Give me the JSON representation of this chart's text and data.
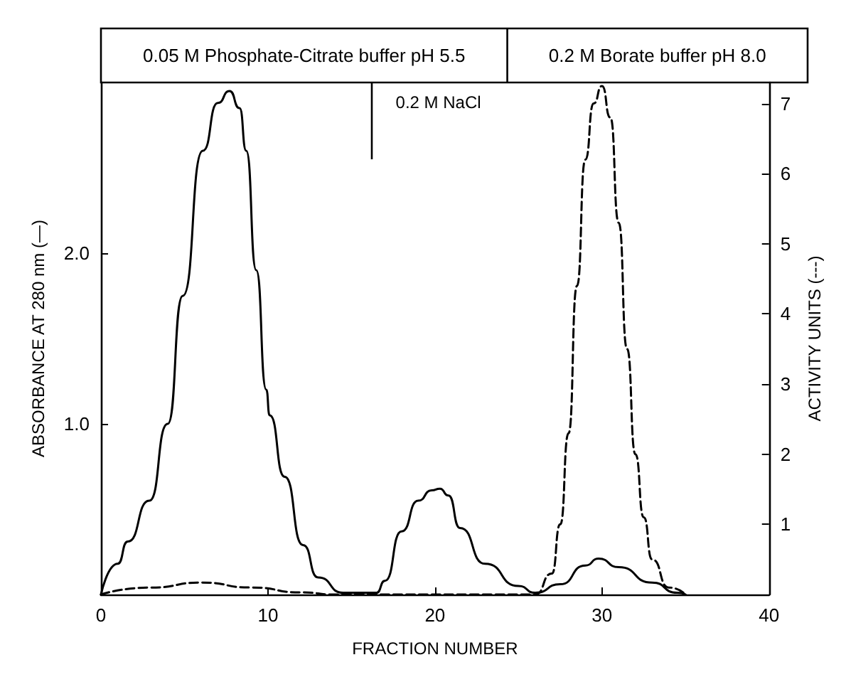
{
  "chart_data": {
    "type": "line",
    "xlabel": "FRACTION NUMBER",
    "ylabel": "ABSORBANCE AT 280 nm (—)",
    "y2label": "ACTIVITY UNITS (---)",
    "xlim": [
      0,
      40
    ],
    "xticks": [
      0,
      10,
      20,
      30,
      40
    ],
    "ylim": [
      0,
      3.0
    ],
    "yticks": [
      {
        "value": 1,
        "label": "1.0"
      },
      {
        "value": 2,
        "label": "2.0"
      }
    ],
    "y2lim": [
      0,
      7.3
    ],
    "y2ticks": [
      1,
      2,
      3,
      4,
      5,
      6,
      7
    ],
    "grid": false,
    "marker": "none",
    "annotations": [
      "0.05 M Phosphate-Citrate buffer pH 5.5",
      "0.2 M Borate buffer pH 8.0"
    ],
    "ref_lines": [
      {
        "axis": "x",
        "value": 16.2,
        "label": "0.2 M NaCl",
        "color": "#000000",
        "line_style": "solid"
      }
    ],
    "series": [
      {
        "color": "#000000",
        "line_style": "solid",
        "x": [
          0,
          1,
          1.6,
          2.9,
          4,
          4.9,
          6.1,
          7,
          7.7,
          8.3,
          8.7,
          9.3,
          9.9,
          10.1,
          11,
          12.1,
          13,
          14.5,
          16.5,
          17,
          18,
          19,
          19.8,
          20.3,
          20.8,
          21.5,
          23,
          25,
          26,
          27.5,
          29,
          29.8,
          31,
          33,
          34.5,
          35
        ],
        "values": [
          0,
          0.18,
          0.31,
          0.55,
          1.0,
          1.75,
          2.6,
          2.88,
          2.95,
          2.85,
          2.6,
          1.9,
          1.2,
          1.05,
          0.69,
          0.29,
          0.1,
          0.01,
          0.01,
          0.08,
          0.37,
          0.55,
          0.61,
          0.62,
          0.58,
          0.39,
          0.18,
          0.05,
          0.01,
          0.06,
          0.17,
          0.21,
          0.16,
          0.07,
          0.01,
          0
        ]
      },
      {
        "axis": "y2",
        "color": "#000000",
        "line_style": "dashed",
        "x": [
          0,
          3,
          6,
          9,
          12,
          14,
          26,
          27,
          27.5,
          28,
          28.5,
          29,
          29.5,
          30,
          30.5,
          31,
          31.5,
          32,
          32.5,
          33,
          34,
          35
        ],
        "values": [
          0,
          0.1,
          0.17,
          0.1,
          0.03,
          0,
          0,
          0.3,
          1.0,
          2.3,
          4.4,
          6.2,
          7.0,
          7.25,
          6.8,
          5.3,
          3.5,
          2.0,
          1.1,
          0.5,
          0.1,
          0
        ]
      }
    ]
  }
}
